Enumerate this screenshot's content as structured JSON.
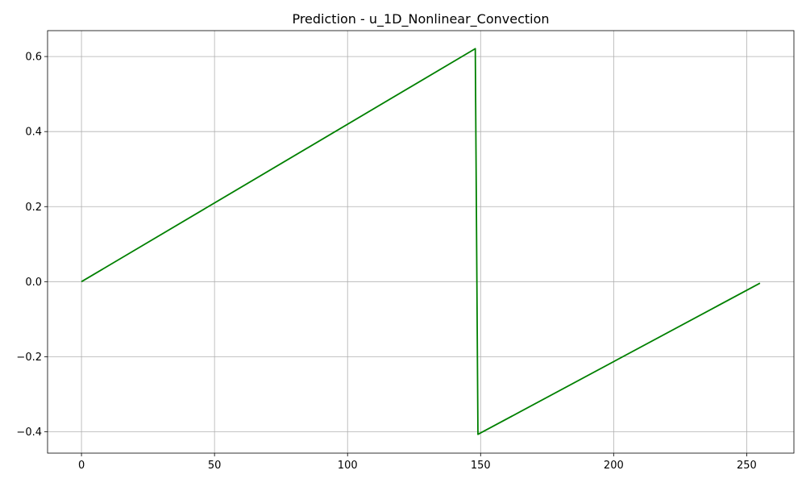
{
  "chart_data": {
    "type": "line",
    "title": "Prediction - u_1D_Nonlinear_Convection",
    "xlabel": "",
    "ylabel": "",
    "xlim": [
      -12.75,
      267.75
    ],
    "ylim": [
      -0.457,
      0.669
    ],
    "grid": true,
    "x_ticks": [
      0,
      50,
      100,
      150,
      200,
      250
    ],
    "x_tick_labels": [
      "0",
      "50",
      "100",
      "150",
      "200",
      "250"
    ],
    "y_ticks": [
      -0.4,
      -0.2,
      0.0,
      0.2,
      0.4,
      0.6
    ],
    "y_tick_labels": [
      "−0.4",
      "−0.2",
      "0.0",
      "0.2",
      "0.4",
      "0.6"
    ],
    "series": [
      {
        "color": "#008000",
        "x": [
          0,
          148,
          149,
          255
        ],
        "y": [
          0.0,
          0.621,
          -0.407,
          -0.004
        ]
      }
    ]
  }
}
